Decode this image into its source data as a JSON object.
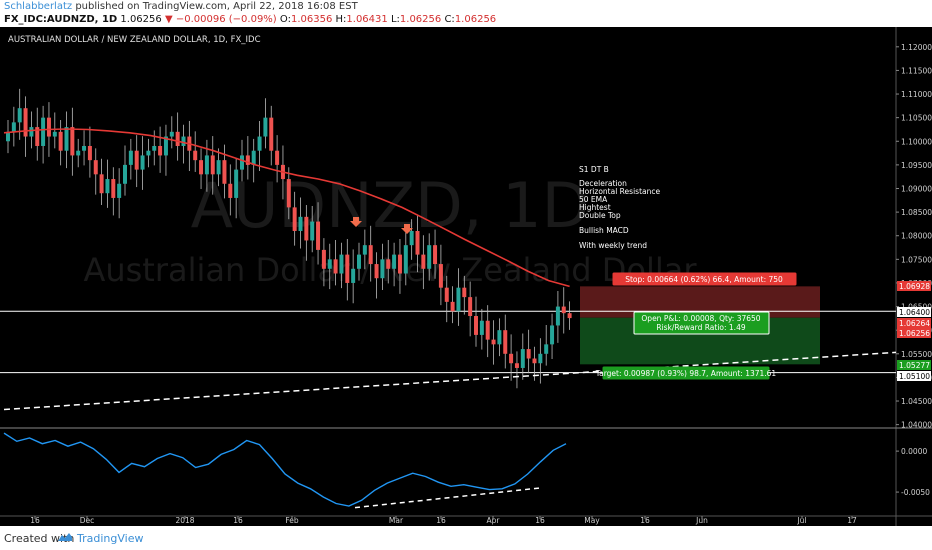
{
  "header": {
    "author": "Schlabberlatz",
    "published": "published on TradingView.com, April 22, 2018 16:08 EST",
    "symbol": "FX_IDC:AUDNZD, 1D",
    "last": "1.06256",
    "change": "−0.00096 (−0.09%)",
    "open_label": "O:",
    "open": "1.06356",
    "high_label": "H:",
    "high": "1.06431",
    "low_label": "L:",
    "low": "1.06256",
    "close_label": "C:",
    "close": "1.06256"
  },
  "footer": {
    "created_with": "Created with",
    "brand": "TradingView"
  },
  "colors": {
    "background": "#000000",
    "up": "#26a69a",
    "down": "#ef5350",
    "ema": "#e53935",
    "macd": "#2196f3",
    "stop_zone": "#5a1a1a",
    "target_zone": "#0f4a1a"
  },
  "chart_data": [
    {
      "type": "candlestick",
      "title": "AUSTRALIAN DOLLAR / NEW ZEALAND DOLLAR, 1D, FX_IDC",
      "watermark_symbol": "AUDNZD, 1D",
      "watermark_name": "Australian Dollar / New Zealand Dollar",
      "x_ticks": [
        "16",
        "Dec",
        "2018",
        "16",
        "Feb",
        "Mar",
        "16",
        "Apr",
        "16",
        "May",
        "16",
        "Jun",
        "Jul",
        "17"
      ],
      "y_ticks": [
        "1.12000",
        "1.11500",
        "1.11000",
        "1.10500",
        "1.10000",
        "1.09500",
        "1.09000",
        "1.08500",
        "1.08000",
        "1.07500",
        "1.07000",
        "1.06500",
        "1.06000",
        "1.05500",
        "1.05000",
        "1.04500",
        "1.04000"
      ],
      "ylim": [
        1.0395,
        1.1225
      ],
      "close_series": [
        1.102,
        1.104,
        1.107,
        1.101,
        1.103,
        1.099,
        1.105,
        1.101,
        1.102,
        1.098,
        1.103,
        1.097,
        1.098,
        1.099,
        1.096,
        1.093,
        1.089,
        1.092,
        1.088,
        1.091,
        1.095,
        1.098,
        1.094,
        1.097,
        1.098,
        1.099,
        1.097,
        1.101,
        1.102,
        1.099,
        1.101,
        1.098,
        1.096,
        1.093,
        1.097,
        1.093,
        1.096,
        1.091,
        1.088,
        1.094,
        1.097,
        1.095,
        1.098,
        1.101,
        1.105,
        1.098,
        1.095,
        1.092,
        1.086,
        1.081,
        1.084,
        1.079,
        1.083,
        1.077,
        1.073,
        1.075,
        1.072,
        1.076,
        1.07,
        1.073,
        1.076,
        1.078,
        1.074,
        1.071,
        1.075,
        1.073,
        1.076,
        1.072,
        1.078,
        1.081,
        1.076,
        1.073,
        1.078,
        1.074,
        1.069,
        1.066,
        1.064,
        1.069,
        1.067,
        1.063,
        1.059,
        1.062,
        1.058,
        1.057,
        1.06,
        1.055,
        1.053,
        1.052,
        1.056,
        1.054,
        1.053,
        1.055,
        1.057,
        1.061,
        1.065,
        1.0636,
        1.06256
      ],
      "ema_50": [
        1.1018,
        1.1022,
        1.1025,
        1.1026,
        1.1025,
        1.1022,
        1.1018,
        1.1012,
        1.1003,
        1.0993,
        1.098,
        1.0965,
        1.095,
        1.0938,
        1.0928,
        1.092,
        1.091,
        1.0895,
        1.0878,
        1.086,
        1.0838,
        1.0815,
        1.0792,
        1.077,
        1.0748,
        1.0725,
        1.0705,
        1.06928
      ],
      "annotations": {
        "notes": [
          "S1 DT B",
          "Deceleration",
          "Horizontal Resistance",
          "50 EMA",
          "Hightest",
          "Double Top",
          "Bullish MACD",
          "With weekly trend"
        ],
        "stop_label": "Stop: 0.00664 (0.62%) 66.4, Amount: 750",
        "pnl_label": "Open P&L: 0.00008, Qty: 37650",
        "rr_label": "Risk/Reward Ratio: 1.49",
        "target_label": "Target: 0.00987 (0.93%) 98.7, Amount: 1371.61",
        "price_badges": [
          "1.06928",
          "1.06400",
          "1.06264",
          "1.06256",
          "1.05277",
          "1.05100"
        ],
        "horizontal_levels": [
          1.064,
          1.051
        ],
        "stop_price": 1.06928,
        "entry_price": 1.06264,
        "target_price": 1.05277
      }
    },
    {
      "type": "line",
      "title": "",
      "y_ticks": [
        "0.0000",
        "-0.0050"
      ],
      "ylim": [
        -0.0078,
        0.0027
      ],
      "macd_values": [
        0.0022,
        0.0012,
        0.0016,
        0.0009,
        0.0013,
        0.0006,
        0.0011,
        0.0003,
        -0.001,
        -0.0026,
        -0.0015,
        -0.0019,
        -0.0009,
        -0.0003,
        -0.0008,
        -0.002,
        -0.0016,
        -0.0004,
        0.0002,
        0.0013,
        0.0008,
        -0.0009,
        -0.0028,
        -0.0039,
        -0.0046,
        -0.0056,
        -0.0064,
        -0.0067,
        -0.006,
        -0.0048,
        -0.0039,
        -0.0033,
        -0.0027,
        -0.0031,
        -0.0038,
        -0.0043,
        -0.0041,
        -0.0044,
        -0.0047,
        -0.0046,
        -0.004,
        -0.0028,
        -0.0013,
        0.0001,
        0.0009
      ]
    }
  ]
}
